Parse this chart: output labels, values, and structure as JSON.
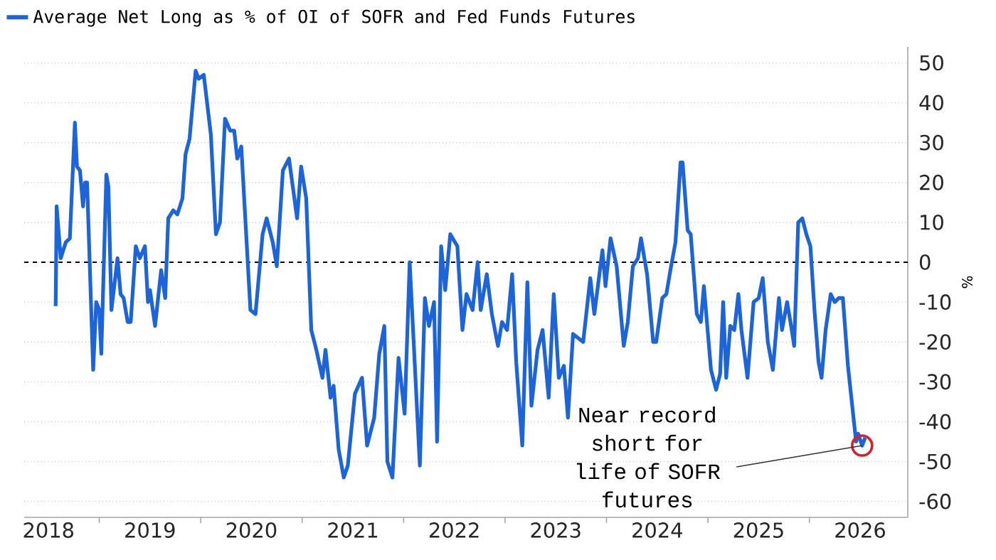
{
  "chart_data": {
    "type": "line",
    "series": [
      {
        "name": "Average Net Long as % of OI of SOFR and Fed Funds Futures",
        "color": "#1c64d8",
        "values": [
          -11,
          14,
          1,
          5,
          6,
          35,
          24,
          23,
          14,
          20,
          20,
          -27,
          -10,
          -12,
          -23,
          22,
          19,
          -12,
          1,
          -8,
          -9,
          -15,
          -15,
          4,
          1,
          4,
          -10,
          -7,
          -16,
          -2,
          -9,
          11,
          13,
          12,
          16,
          27,
          31,
          48,
          46,
          47,
          32,
          7,
          10,
          36,
          33,
          33,
          26,
          29,
          -12,
          -13,
          7,
          11,
          5,
          -1,
          23,
          26,
          11,
          24,
          16,
          -17,
          -22,
          -29,
          -22,
          -34,
          -31,
          -47,
          -54,
          -51,
          -33,
          -29,
          -46,
          -39,
          -23,
          -16,
          -50,
          -54,
          -24,
          -38,
          0,
          -51,
          -9,
          -16,
          -10,
          -45,
          4,
          -7,
          7,
          4,
          -17,
          -8,
          -12,
          0,
          -12,
          -3,
          -13,
          -21,
          -15,
          -17,
          -3,
          -25,
          -46,
          -5,
          -36,
          -22,
          -17,
          -34,
          -8,
          -29,
          -26,
          -39,
          -18,
          -20,
          -4,
          -13,
          3,
          -6,
          6,
          -1,
          -21,
          -15,
          -1,
          1,
          6,
          -3,
          -20,
          -20,
          -9,
          -8,
          -2,
          5,
          25,
          25,
          8,
          7,
          -13,
          -15,
          -6,
          -27,
          -32,
          -28,
          -10,
          -29,
          -16,
          -17,
          -8,
          -17,
          -29,
          -10,
          -9,
          -4,
          -20,
          -27,
          -9,
          -17,
          -10,
          -16,
          -21,
          10,
          11,
          7,
          4,
          -12,
          -25,
          -29,
          -17,
          -8,
          -10,
          -9,
          -9,
          -26,
          -45,
          -43,
          -46,
          -44
        ]
      }
    ],
    "x": [
      2018.57,
      2018.58,
      2018.62,
      2018.67,
      2018.71,
      2018.76,
      2018.78,
      2018.81,
      2018.84,
      2018.86,
      2018.88,
      2018.94,
      2018.97,
      2019.0,
      2019.02,
      2019.07,
      2019.09,
      2019.12,
      2019.18,
      2019.21,
      2019.24,
      2019.28,
      2019.31,
      2019.36,
      2019.4,
      2019.45,
      2019.48,
      2019.5,
      2019.55,
      2019.61,
      2019.65,
      2019.68,
      2019.73,
      2019.77,
      2019.82,
      2019.85,
      2019.89,
      2019.95,
      2019.98,
      2020.03,
      2020.1,
      2020.15,
      2020.19,
      2020.24,
      2020.29,
      2020.33,
      2020.36,
      2020.4,
      2020.49,
      2020.54,
      2020.61,
      2020.65,
      2020.71,
      2020.75,
      2020.81,
      2020.87,
      2020.95,
      2020.99,
      2021.04,
      2021.09,
      2021.14,
      2021.2,
      2021.23,
      2021.28,
      2021.31,
      2021.36,
      2021.41,
      2021.45,
      2021.52,
      2021.59,
      2021.64,
      2021.71,
      2021.76,
      2021.81,
      2021.84,
      2021.89,
      2021.95,
      2022.01,
      2022.06,
      2022.16,
      2022.21,
      2022.25,
      2022.3,
      2022.33,
      2022.37,
      2022.41,
      2022.46,
      2022.53,
      2022.58,
      2022.62,
      2022.68,
      2022.73,
      2022.76,
      2022.82,
      2022.87,
      2022.93,
      2022.97,
      2023.02,
      2023.07,
      2023.11,
      2023.17,
      2023.22,
      2023.26,
      2023.32,
      2023.37,
      2023.43,
      2023.48,
      2023.53,
      2023.58,
      2023.62,
      2023.67,
      2023.77,
      2023.84,
      2023.88,
      2023.96,
      2023.99,
      2024.04,
      2024.1,
      2024.17,
      2024.21,
      2024.26,
      2024.31,
      2024.34,
      2024.4,
      2024.46,
      2024.49,
      2024.55,
      2024.59,
      2024.63,
      2024.68,
      2024.73,
      2024.75,
      2024.8,
      2024.83,
      2024.89,
      2024.93,
      2024.96,
      2025.03,
      2025.08,
      2025.12,
      2025.15,
      2025.18,
      2025.22,
      2025.26,
      2025.3,
      2025.33,
      2025.39,
      2025.45,
      2025.5,
      2025.54,
      2025.59,
      2025.64,
      2025.7,
      2025.73,
      2025.78,
      2025.82,
      2025.85,
      2025.89,
      2025.93,
      2025.97,
      2026.01,
      2026.05,
      2026.09,
      2026.12,
      2026.16,
      2026.21,
      2026.25,
      2026.29,
      2026.33,
      2026.38,
      2026.46,
      2026.48,
      2026.52,
      2026.55
    ],
    "xlim": [
      2018.26,
      2026.97
    ],
    "xticks": [
      {
        "value": 2018.5,
        "label": "2018"
      },
      {
        "value": 2019,
        "label": null
      },
      {
        "value": 2019.5,
        "label": "2019"
      },
      {
        "value": 2020,
        "label": null
      },
      {
        "value": 2020.5,
        "label": "2020"
      },
      {
        "value": 2021,
        "label": null
      },
      {
        "value": 2021.5,
        "label": "2021"
      },
      {
        "value": 2022,
        "label": null
      },
      {
        "value": 2022.5,
        "label": "2022"
      },
      {
        "value": 2023,
        "label": null
      },
      {
        "value": 2023.5,
        "label": "2023"
      },
      {
        "value": 2024,
        "label": null
      },
      {
        "value": 2024.5,
        "label": "2024"
      },
      {
        "value": 2025,
        "label": null
      },
      {
        "value": 2025.5,
        "label": "2025"
      },
      {
        "value": 2026,
        "label": null
      },
      {
        "value": 2026.5,
        "label": "2026"
      }
    ],
    "ylim": [
      -64,
      54
    ],
    "yticks": [
      -60,
      -50,
      -40,
      -30,
      -20,
      -10,
      0,
      10,
      20,
      30,
      40,
      50
    ],
    "ylabel": "%",
    "grid": "y",
    "legend": "top left",
    "ref_lines": [
      {
        "axis": "y",
        "value": 0,
        "color": "#000000",
        "line_style": "dashed"
      }
    ],
    "annotations": [
      {
        "text": "Near record short for life of SOFR futures",
        "x": 2026.52,
        "y": -46
      }
    ]
  }
}
